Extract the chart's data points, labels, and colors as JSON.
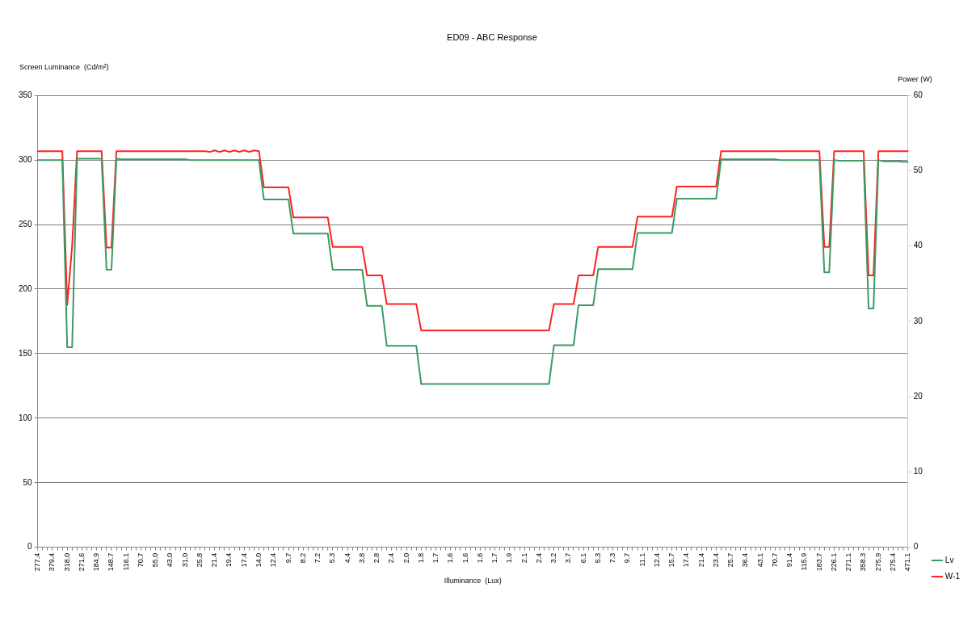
{
  "chart_data": {
    "type": "line",
    "title": "ED09 - ABC Response",
    "xlabel": "Illuminance  (Lux)",
    "ylabel": "Screen Luminance  (Cd/m²)",
    "y2label": "Power (W)",
    "categories": [
      "277.4",
      null,
      null,
      "379.4",
      null,
      null,
      "318.0",
      null,
      null,
      "271.6",
      null,
      null,
      "184.9",
      null,
      null,
      "148.7",
      null,
      null,
      "116.1",
      null,
      null,
      "70.7",
      null,
      null,
      "55.0",
      null,
      null,
      "43.0",
      null,
      null,
      "31.0",
      null,
      null,
      "25.8",
      null,
      null,
      "21.4",
      null,
      null,
      "19.4",
      null,
      null,
      "17.4",
      null,
      null,
      "14.0",
      null,
      null,
      "12.4",
      null,
      null,
      "9.7",
      null,
      null,
      "8.2",
      null,
      null,
      "7.2",
      null,
      null,
      "5.3",
      null,
      null,
      "4.4",
      null,
      null,
      "3.8",
      null,
      null,
      "2.8",
      null,
      null,
      "2.4",
      null,
      null,
      "2.0",
      null,
      null,
      "1.8",
      null,
      null,
      "1.7",
      null,
      null,
      "1.6",
      null,
      null,
      "1.6",
      null,
      null,
      "1.6",
      null,
      null,
      "1.7",
      null,
      null,
      "1.9",
      null,
      null,
      "2.1",
      null,
      null,
      "2.4",
      null,
      null,
      "3.2",
      null,
      null,
      "3.7",
      null,
      null,
      "6.1",
      null,
      null,
      "5.3",
      null,
      null,
      "7.3",
      null,
      null,
      "9.7",
      null,
      null,
      "11.1",
      null,
      null,
      "12.4",
      null,
      null,
      "15.7",
      null,
      null,
      "17.4",
      null,
      null,
      "21.4",
      null,
      null,
      "23.4",
      null,
      null,
      "25.7",
      null,
      null,
      "36.4",
      null,
      null,
      "43.1",
      null,
      null,
      "70.7",
      null,
      null,
      "91.4",
      null,
      null,
      "115.9",
      null,
      null,
      "183.7",
      null,
      null,
      "226.1",
      null,
      null,
      "271.1",
      null,
      null,
      "358.3",
      null,
      null,
      "275.9",
      null,
      null,
      "275.4",
      null,
      null,
      "471.1"
    ],
    "series": [
      {
        "name": "Lv",
        "color": "#3c9a64",
        "values": [
          300,
          300,
          300,
          300,
          300,
          300,
          155,
          155,
          301,
          301,
          301,
          301,
          301,
          301,
          215,
          215,
          301,
          300.5,
          300.5,
          300.5,
          300.5,
          300.5,
          300.5,
          300.5,
          300.5,
          300.5,
          300.5,
          300.5,
          300.5,
          300.5,
          300.5,
          300,
          300,
          300,
          300,
          300,
          300,
          300,
          300,
          300,
          300,
          300,
          300,
          300,
          300,
          300,
          269.5,
          269.5,
          269.5,
          269.5,
          269.5,
          269.5,
          243,
          243,
          243,
          243,
          243,
          243,
          243,
          243,
          215,
          215,
          215,
          215,
          215,
          215,
          215,
          187,
          187,
          187,
          187,
          156,
          156,
          156,
          156,
          156,
          156,
          156,
          126.5,
          126.5,
          126.5,
          126.5,
          126.5,
          126.5,
          126.5,
          126.5,
          126.5,
          126.5,
          126.5,
          126.5,
          126.5,
          126.5,
          126.5,
          126.5,
          126.5,
          126.5,
          126.5,
          126.5,
          126.5,
          126.5,
          126.5,
          126.5,
          126.5,
          126.5,
          126.5,
          156.5,
          156.5,
          156.5,
          156.5,
          156.5,
          187.5,
          187.5,
          187.5,
          187.5,
          215.5,
          215.5,
          215.5,
          215.5,
          215.5,
          215.5,
          215.5,
          215.5,
          243.5,
          243.5,
          243.5,
          243.5,
          243.5,
          243.5,
          243.5,
          243.5,
          270,
          270,
          270,
          270,
          270,
          270,
          270,
          270,
          270,
          300.5,
          300.5,
          300.5,
          300.5,
          300.5,
          300.5,
          300.5,
          300.5,
          300.5,
          300.5,
          300.5,
          300.5,
          300,
          300,
          300,
          300,
          300,
          300,
          300,
          300,
          300,
          213,
          213,
          300,
          299.5,
          299.5,
          299.5,
          299.5,
          299.5,
          299.5,
          185,
          185,
          300,
          299,
          299,
          299,
          299,
          298.5,
          298.5
        ]
      },
      {
        "name": "W-1",
        "color": "#ff2222",
        "axis": "y2",
        "values": [
          52.6,
          52.6,
          52.6,
          52.6,
          52.6,
          52.6,
          32.2,
          40,
          52.6,
          52.6,
          52.6,
          52.6,
          52.6,
          52.6,
          39.8,
          39.8,
          52.6,
          52.6,
          52.6,
          52.6,
          52.6,
          52.6,
          52.6,
          52.6,
          52.6,
          52.6,
          52.6,
          52.6,
          52.6,
          52.6,
          52.6,
          52.6,
          52.6,
          52.6,
          52.6,
          52.5,
          52.7,
          52.5,
          52.7,
          52.5,
          52.7,
          52.5,
          52.7,
          52.5,
          52.7,
          52.6,
          47.8,
          47.8,
          47.8,
          47.8,
          47.8,
          47.8,
          43.8,
          43.8,
          43.8,
          43.8,
          43.8,
          43.8,
          43.8,
          43.8,
          39.9,
          39.9,
          39.9,
          39.9,
          39.9,
          39.9,
          39.9,
          36.1,
          36.1,
          36.1,
          36.1,
          32.3,
          32.3,
          32.3,
          32.3,
          32.3,
          32.3,
          32.3,
          28.8,
          28.8,
          28.8,
          28.8,
          28.8,
          28.8,
          28.8,
          28.8,
          28.8,
          28.8,
          28.8,
          28.8,
          28.8,
          28.8,
          28.8,
          28.8,
          28.8,
          28.8,
          28.8,
          28.8,
          28.8,
          28.8,
          28.8,
          28.8,
          28.8,
          28.8,
          28.8,
          32.3,
          32.3,
          32.3,
          32.3,
          32.3,
          36.1,
          36.1,
          36.1,
          36.1,
          39.9,
          39.9,
          39.9,
          39.9,
          39.9,
          39.9,
          39.9,
          39.9,
          43.9,
          43.9,
          43.9,
          43.9,
          43.9,
          43.9,
          43.9,
          43.9,
          47.9,
          47.9,
          47.9,
          47.9,
          47.9,
          47.9,
          47.9,
          47.9,
          47.9,
          52.6,
          52.6,
          52.6,
          52.6,
          52.6,
          52.6,
          52.6,
          52.6,
          52.6,
          52.6,
          52.6,
          52.6,
          52.6,
          52.6,
          52.6,
          52.6,
          52.6,
          52.6,
          52.6,
          52.6,
          52.6,
          39.9,
          39.9,
          52.6,
          52.6,
          52.6,
          52.6,
          52.6,
          52.6,
          52.6,
          36.1,
          36.1,
          52.6,
          52.6,
          52.6,
          52.6,
          52.6,
          52.6,
          52.6
        ]
      }
    ],
    "ylim": [
      0,
      350
    ],
    "yticks": [
      0,
      50,
      100,
      150,
      200,
      250,
      300,
      350
    ],
    "y2lim": [
      0,
      60
    ],
    "y2ticks": [
      0,
      10,
      20,
      30,
      40,
      50,
      60
    ],
    "grid": "y",
    "legend": "bottom right",
    "marker": "none",
    "line_style": "solid"
  }
}
